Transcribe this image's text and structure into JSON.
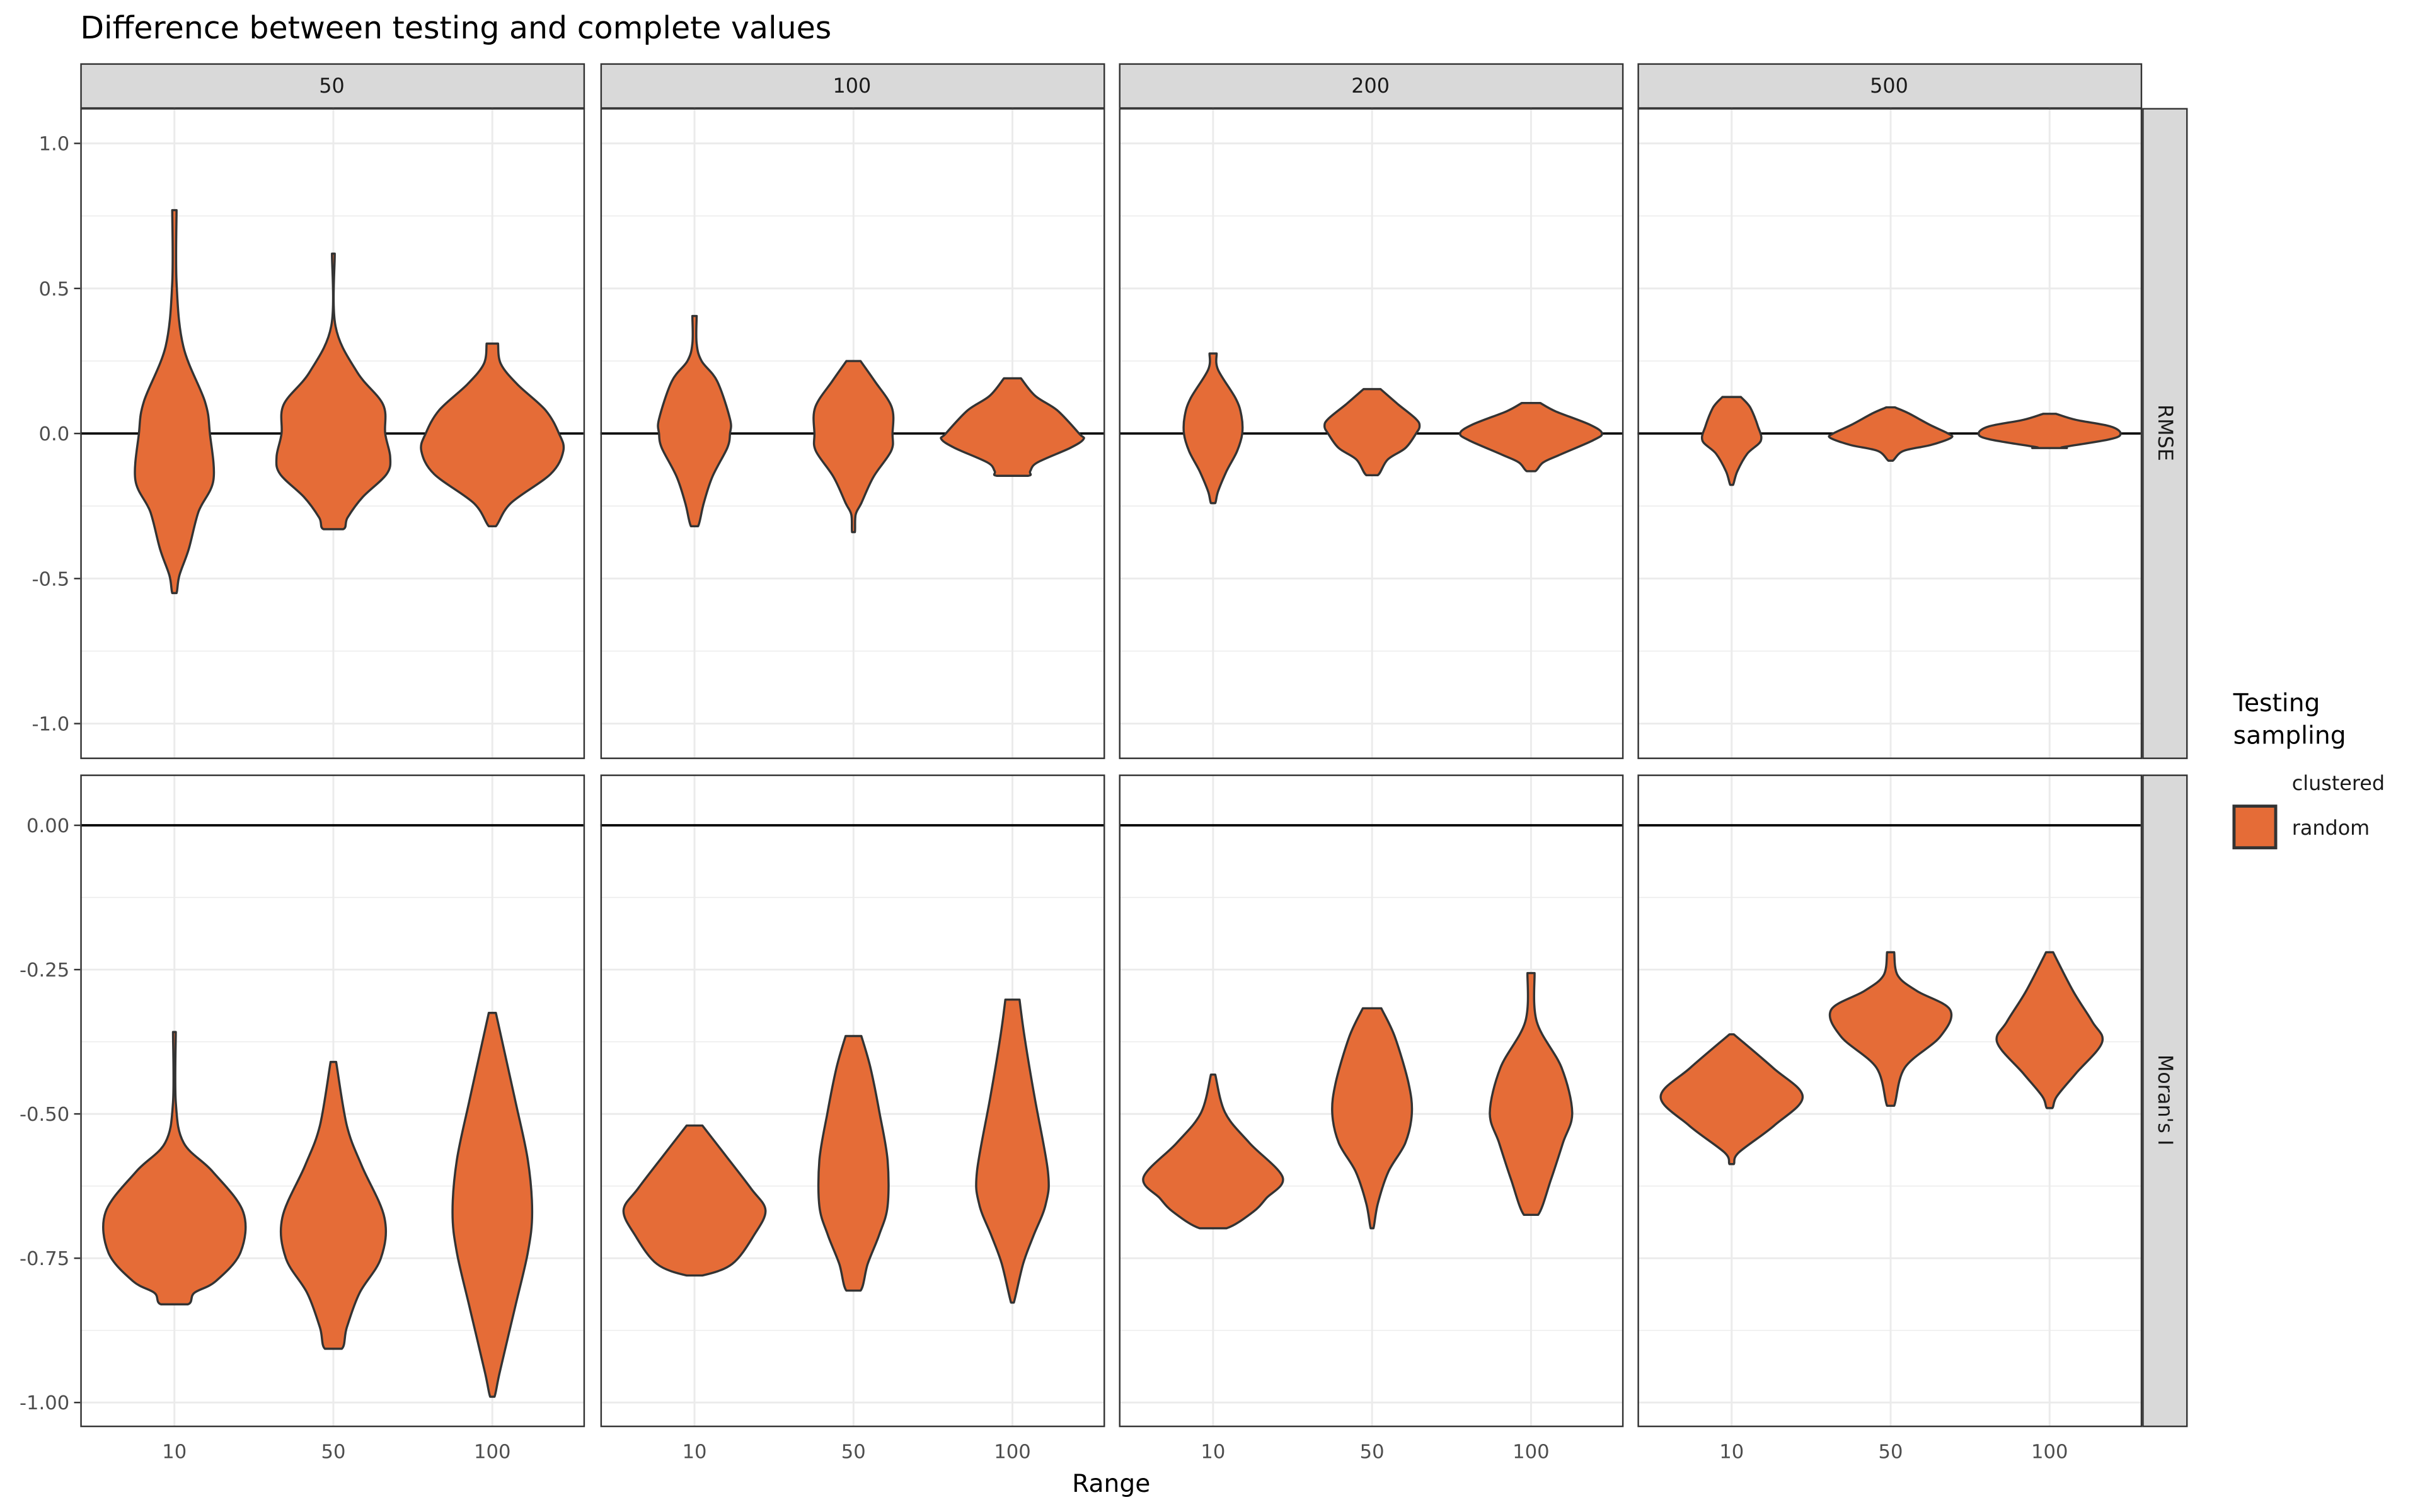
{
  "chart_data": {
    "type": "violin",
    "title": "Difference between testing and complete values",
    "xlabel": "Range",
    "categories": [
      "10",
      "50",
      "100"
    ],
    "col_facets": [
      "50",
      "100",
      "200",
      "500"
    ],
    "row_facets": [
      "RMSE",
      "Moran's I"
    ],
    "legend": {
      "title_lines": [
        "Testing",
        "sampling"
      ],
      "entries": [
        "clustered",
        "random"
      ],
      "placement": "right"
    },
    "colors": {
      "fill": "#E56C37",
      "outline": "#333333",
      "strip": "#D9D9D9",
      "grid": "#EBEBEB",
      "hline": "#000000"
    },
    "hline": 0,
    "grid": true,
    "rows": [
      {
        "name": "RMSE",
        "ylim": [
          -1.117,
          1.122
        ],
        "ticks": [
          1.0,
          0.5,
          0.0,
          -0.5,
          -1.0
        ],
        "tick_labels": [
          "1.0",
          "0.5",
          "0.0",
          "-0.5",
          "-1.0"
        ],
        "minor": [
          0.75,
          0.25,
          -0.25,
          -0.75
        ],
        "panels": [
          [
            [
              [
                0.77,
                0.03
              ],
              [
                0.52,
                0.03
              ],
              [
                0.3,
                0.125
              ],
              [
                0.11,
                0.43
              ],
              [
                0,
                0.5
              ],
              [
                -0.16,
                0.55
              ],
              [
                -0.27,
                0.34
              ],
              [
                -0.4,
                0.2
              ],
              [
                -0.49,
                0.07
              ],
              [
                -0.55,
                0.03
              ]
            ],
            [
              [
                0.62,
                0.02
              ],
              [
                0.37,
                0.03
              ],
              [
                0.21,
                0.34
              ],
              [
                0.1,
                0.7
              ],
              [
                0,
                0.73
              ],
              [
                -0.08,
                0.8
              ],
              [
                -0.14,
                0.75
              ],
              [
                -0.22,
                0.41
              ],
              [
                -0.29,
                0.2
              ],
              [
                -0.33,
                0.14
              ]
            ],
            [
              [
                0.31,
                0.08
              ],
              [
                0.24,
                0.12
              ],
              [
                0.17,
                0.35
              ],
              [
                0.08,
                0.75
              ],
              [
                0,
                0.94
              ],
              [
                -0.06,
                1.0
              ],
              [
                -0.14,
                0.82
              ],
              [
                -0.24,
                0.26
              ],
              [
                -0.32,
                0.05
              ]
            ]
          ],
          [
            [
              [
                0.405,
                0.03
              ],
              [
                0.31,
                0.03
              ],
              [
                0.25,
                0.1
              ],
              [
                0.18,
                0.32
              ],
              [
                0.05,
                0.5
              ],
              [
                0,
                0.5
              ],
              [
                -0.05,
                0.46
              ],
              [
                -0.15,
                0.25
              ],
              [
                -0.24,
                0.13
              ],
              [
                -0.32,
                0.05
              ]
            ],
            [
              [
                0.25,
                0.1
              ],
              [
                0.18,
                0.3
              ],
              [
                0.09,
                0.54
              ],
              [
                0,
                0.55
              ],
              [
                -0.06,
                0.53
              ],
              [
                -0.15,
                0.28
              ],
              [
                -0.24,
                0.11
              ],
              [
                -0.28,
                0.03
              ],
              [
                -0.34,
                0.02
              ]
            ],
            [
              [
                0.19,
                0.12
              ],
              [
                0.13,
                0.32
              ],
              [
                0.08,
                0.63
              ],
              [
                0,
                0.94
              ],
              [
                -0.02,
                1.0
              ],
              [
                -0.05,
                0.81
              ],
              [
                -0.1,
                0.35
              ],
              [
                -0.13,
                0.25
              ],
              [
                -0.146,
                0.22
              ]
            ]
          ],
          [
            [
              [
                0.276,
                0.05
              ],
              [
                0.22,
                0.07
              ],
              [
                0.12,
                0.32
              ],
              [
                0.06,
                0.4
              ],
              [
                0,
                0.41
              ],
              [
                -0.06,
                0.34
              ],
              [
                -0.13,
                0.19
              ],
              [
                -0.2,
                0.07
              ],
              [
                -0.24,
                0.03
              ]
            ],
            [
              [
                0.153,
                0.12
              ],
              [
                0.1,
                0.37
              ],
              [
                0.05,
                0.62
              ],
              [
                0.025,
                0.67
              ],
              [
                0,
                0.62
              ],
              [
                -0.05,
                0.47
              ],
              [
                -0.09,
                0.22
              ],
              [
                -0.144,
                0.08
              ]
            ],
            [
              [
                0.105,
                0.13
              ],
              [
                0.076,
                0.35
              ],
              [
                0.03,
                0.83
              ],
              [
                0,
                1.0
              ],
              [
                -0.025,
                0.86
              ],
              [
                -0.075,
                0.39
              ],
              [
                -0.1,
                0.17
              ],
              [
                -0.13,
                0.06
              ]
            ]
          ],
          [
            [
              [
                0.126,
                0.13
              ],
              [
                0.09,
                0.26
              ],
              [
                0.025,
                0.37
              ],
              [
                -0.025,
                0.41
              ],
              [
                -0.07,
                0.22
              ],
              [
                -0.13,
                0.08
              ],
              [
                -0.177,
                0.02
              ]
            ],
            [
              [
                0.09,
                0.06
              ],
              [
                0.07,
                0.25
              ],
              [
                0.03,
                0.55
              ],
              [
                0,
                0.81
              ],
              [
                -0.015,
                0.85
              ],
              [
                -0.04,
                0.56
              ],
              [
                -0.06,
                0.18
              ],
              [
                -0.094,
                0.03
              ]
            ],
            [
              [
                0.068,
                0.09
              ],
              [
                0.047,
                0.37
              ],
              [
                0.025,
                0.85
              ],
              [
                0,
                1.0
              ],
              [
                -0.02,
                0.85
              ],
              [
                -0.047,
                0.19
              ],
              [
                -0.05,
                0.23
              ]
            ]
          ]
        ]
      },
      {
        "name": "Moran's I",
        "ylim": [
          -1.04,
          0.088
        ],
        "ticks": [
          0.0,
          -0.25,
          -0.5,
          -0.75,
          -1.0
        ],
        "tick_labels": [
          "0.00",
          "-0.25",
          "-0.50",
          "-0.75",
          "-1.00"
        ],
        "minor": [
          -0.125,
          -0.375,
          -0.625,
          -0.875
        ],
        "panels": [
          [
            [
              [
                -0.358,
                0.02
              ],
              [
                -0.48,
                0.02
              ],
              [
                -0.55,
                0.13
              ],
              [
                -0.6,
                0.54
              ],
              [
                -0.67,
                0.97
              ],
              [
                -0.74,
                0.93
              ],
              [
                -0.79,
                0.58
              ],
              [
                -0.81,
                0.28
              ],
              [
                -0.83,
                0.19
              ]
            ],
            [
              [
                -0.41,
                0.04
              ],
              [
                -0.52,
                0.19
              ],
              [
                -0.59,
                0.4
              ],
              [
                -0.68,
                0.72
              ],
              [
                -0.75,
                0.67
              ],
              [
                -0.81,
                0.37
              ],
              [
                -0.87,
                0.19
              ],
              [
                -0.907,
                0.12
              ]
            ],
            [
              [
                -0.325,
                0.05
              ],
              [
                -0.47,
                0.31
              ],
              [
                -0.58,
                0.5
              ],
              [
                -0.67,
                0.56
              ],
              [
                -0.74,
                0.5
              ],
              [
                -0.84,
                0.31
              ],
              [
                -0.95,
                0.1
              ],
              [
                -0.99,
                0.03
              ]
            ]
          ],
          [
            [
              [
                -0.52,
                0.11
              ],
              [
                -0.577,
                0.47
              ],
              [
                -0.63,
                0.8
              ],
              [
                -0.667,
                1.0
              ],
              [
                -0.71,
                0.84
              ],
              [
                -0.76,
                0.53
              ],
              [
                -0.78,
                0.11
              ]
            ],
            [
              [
                -0.365,
                0.11
              ],
              [
                -0.42,
                0.24
              ],
              [
                -0.5,
                0.37
              ],
              [
                -0.58,
                0.48
              ],
              [
                -0.66,
                0.48
              ],
              [
                -0.71,
                0.36
              ],
              [
                -0.76,
                0.2
              ],
              [
                -0.806,
                0.1
              ]
            ],
            [
              [
                -0.302,
                0.1
              ],
              [
                -0.366,
                0.17
              ],
              [
                -0.47,
                0.31
              ],
              [
                -0.6,
                0.5
              ],
              [
                -0.656,
                0.47
              ],
              [
                -0.71,
                0.3
              ],
              [
                -0.76,
                0.15
              ],
              [
                -0.827,
                0.02
              ]
            ]
          ],
          [
            [
              [
                -0.432,
                0.03
              ],
              [
                -0.498,
                0.17
              ],
              [
                -0.55,
                0.51
              ],
              [
                -0.61,
                0.98
              ],
              [
                -0.646,
                0.75
              ],
              [
                -0.67,
                0.56
              ],
              [
                -0.698,
                0.19
              ]
            ],
            [
              [
                -0.317,
                0.13
              ],
              [
                -0.366,
                0.32
              ],
              [
                -0.445,
                0.51
              ],
              [
                -0.498,
                0.56
              ],
              [
                -0.55,
                0.47
              ],
              [
                -0.6,
                0.23
              ],
              [
                -0.656,
                0.08
              ],
              [
                -0.698,
                0.02
              ]
            ],
            [
              [
                -0.256,
                0.05
              ],
              [
                -0.34,
                0.08
              ],
              [
                -0.42,
                0.43
              ],
              [
                -0.498,
                0.58
              ],
              [
                -0.55,
                0.45
              ],
              [
                -0.614,
                0.28
              ],
              [
                -0.675,
                0.1
              ]
            ]
          ],
          [
            [
              [
                -0.362,
                0.03
              ],
              [
                -0.42,
                0.58
              ],
              [
                -0.47,
                1.0
              ],
              [
                -0.52,
                0.6
              ],
              [
                -0.567,
                0.1
              ],
              [
                -0.587,
                0.03
              ]
            ],
            [
              [
                -0.22,
                0.05
              ],
              [
                -0.26,
                0.1
              ],
              [
                -0.287,
                0.37
              ],
              [
                -0.32,
                0.84
              ],
              [
                -0.366,
                0.7
              ],
              [
                -0.42,
                0.2
              ],
              [
                -0.486,
                0.05
              ]
            ],
            [
              [
                -0.22,
                0.05
              ],
              [
                -0.287,
                0.33
              ],
              [
                -0.34,
                0.6
              ],
              [
                -0.376,
                0.74
              ],
              [
                -0.43,
                0.37
              ],
              [
                -0.47,
                0.1
              ],
              [
                -0.49,
                0.04
              ]
            ]
          ]
        ]
      }
    ]
  }
}
